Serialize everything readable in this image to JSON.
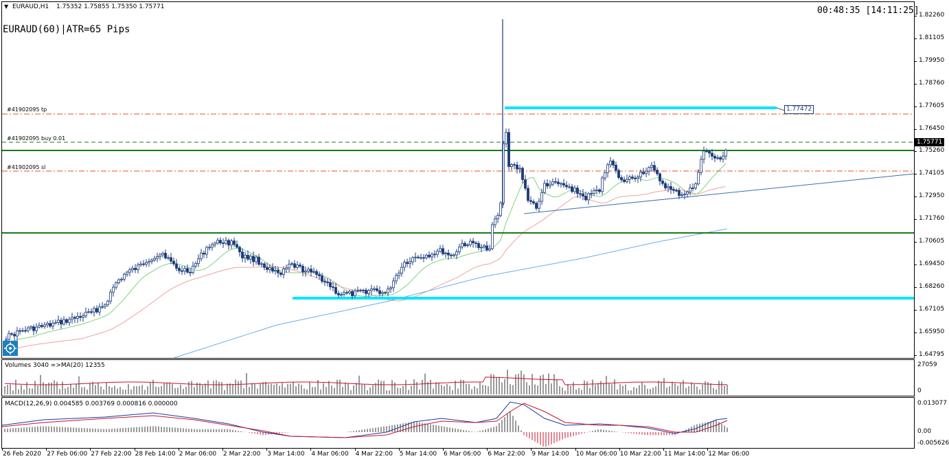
{
  "header": {
    "menu_glyph": "▼",
    "symbol_tf": "EURAUD,H1",
    "ohlc": "1.75352 1.75855 1.75350 1.75771",
    "timer": "00:48:35 [14:11:25]",
    "atr_label": "EURAUD(60)|ATR=65 Pips"
  },
  "order_lines": {
    "tp_label": "#41902095 tp",
    "buy_label": "#41902095 buy 0.01",
    "sl_label": "#41902095 sl",
    "target_label": "1.77472",
    "current_price": "1.75771"
  },
  "price_axis": [
    "1.82260",
    "1.81105",
    "1.79950",
    "1.78760",
    "1.77605",
    "1.76450",
    "1.75260",
    "1.74105",
    "1.72950",
    "1.71760",
    "1.70605",
    "1.69450",
    "1.68260",
    "1.67105",
    "1.65950",
    "1.64795"
  ],
  "volumes": {
    "label": "Volumes 3040  =>MA(20) 12355",
    "axis_top": "27059",
    "axis_bottom": "0"
  },
  "macd": {
    "label": "MACD(12,26,9) 0.004585 0.003769 0.000816 0.000000",
    "axis_top": "0.013077",
    "axis_mid": "0.00",
    "axis_bottom": "-0.005626"
  },
  "time_axis": [
    "26 Feb 2020",
    "27 Feb 06:00",
    "27 Feb 22:00",
    "28 Feb 14:00",
    "2 Mar 06:00",
    "2 Mar 22:00",
    "3 Mar 14:00",
    "4 Mar 06:00",
    "4 Mar 22:00",
    "5 Mar 14:00",
    "6 Mar 06:00",
    "6 Mar 22:00",
    "9 Mar 14:00",
    "10 Mar 06:00",
    "10 Mar 22:00",
    "11 Mar 14:00",
    "12 Mar 06:00"
  ],
  "icons": {
    "corner": "crosshair-target-icon"
  },
  "colors": {
    "candle": "#1a3a7a",
    "cyan": "#00e5ff",
    "green_line": "#1a7a1a",
    "order_line": "#e05020",
    "ma_fast": "#7fd17f",
    "ma_mid": "#f0a0a0",
    "ma_slow": "#6aaee8",
    "trend": "#3a6fb0"
  }
}
